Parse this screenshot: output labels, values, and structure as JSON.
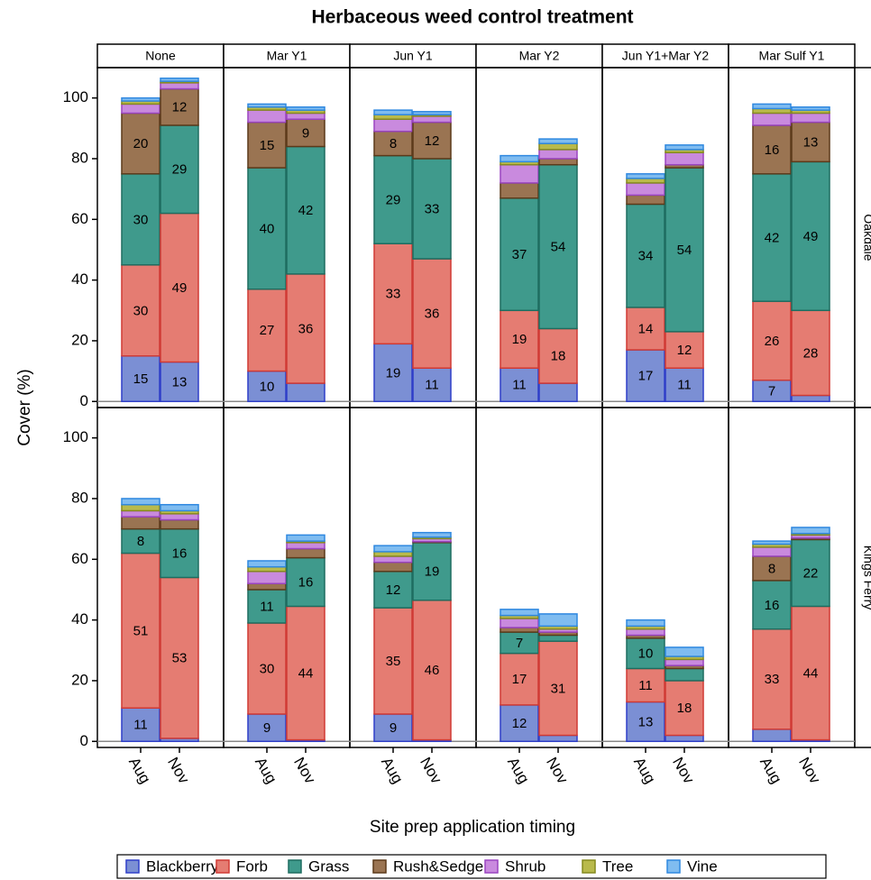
{
  "chart_data": {
    "type": "stacked-bar",
    "title": "Herbaceous weed control treatment",
    "x_label": "Site prep application timing",
    "y_label": "Cover (%)",
    "ylim": [
      -2,
      110
    ],
    "yticks": [
      0,
      20,
      40,
      60,
      80,
      100
    ],
    "columns": [
      "None",
      "Mar Y1",
      "Jun Y1",
      "Mar Y2",
      "Jun Y1+Mar Y2",
      "Mar Sulf Y1"
    ],
    "rows": [
      "Oakdale",
      "Kings Ferry"
    ],
    "categories": [
      "Aug",
      "Nov"
    ],
    "series": [
      {
        "name": "Blackberry",
        "color": "#7b8fd4",
        "edge_color": "#2f3fc8"
      },
      {
        "name": "Forb",
        "color": "#e57c72",
        "edge_color": "#d03a34"
      },
      {
        "name": "Grass",
        "color": "#3f9a8c",
        "edge_color": "#1e6d60"
      },
      {
        "name": "Rush&Sedge",
        "color": "#9a7452",
        "edge_color": "#5c3a1a"
      },
      {
        "name": "Shrub",
        "color": "#c98ade",
        "edge_color": "#9a44c0"
      },
      {
        "name": "Tree",
        "color": "#b9ba4c",
        "edge_color": "#858a1e"
      },
      {
        "name": "Vine",
        "color": "#7fbcf0",
        "edge_color": "#2f88e0"
      }
    ],
    "panels": [
      [
        {
          "values": [
            [
              15,
              13
            ],
            [
              30,
              49
            ],
            [
              30,
              29
            ],
            [
              20,
              12
            ],
            [
              3,
              2
            ],
            [
              1,
              0.5
            ],
            [
              1,
              1
            ]
          ],
          "value_labels": [
            [
              "15",
              "13"
            ],
            [
              "30",
              "49"
            ],
            [
              "30",
              "29"
            ],
            [
              "20",
              "12"
            ],
            [
              null,
              null
            ],
            [
              null,
              null
            ],
            [
              null,
              null
            ]
          ]
        },
        {
          "values": [
            [
              10,
              6
            ],
            [
              27,
              36
            ],
            [
              40,
              42
            ],
            [
              15,
              9
            ],
            [
              4,
              2
            ],
            [
              1,
              1
            ],
            [
              1,
              1
            ]
          ],
          "value_labels": [
            [
              "10",
              null
            ],
            [
              "27",
              "36"
            ],
            [
              "40",
              "42"
            ],
            [
              "15",
              "9"
            ],
            [
              null,
              null
            ],
            [
              null,
              null
            ],
            [
              null,
              null
            ]
          ]
        },
        {
          "values": [
            [
              19,
              11
            ],
            [
              33,
              36
            ],
            [
              29,
              33
            ],
            [
              8,
              12
            ],
            [
              4,
              2
            ],
            [
              1.5,
              0.5
            ],
            [
              1.5,
              1
            ]
          ],
          "value_labels": [
            [
              "19",
              "11"
            ],
            [
              "33",
              "36"
            ],
            [
              "29",
              "33"
            ],
            [
              "8",
              "12"
            ],
            [
              null,
              null
            ],
            [
              null,
              null
            ],
            [
              null,
              null
            ]
          ]
        },
        {
          "values": [
            [
              11,
              6
            ],
            [
              19,
              18
            ],
            [
              37,
              54
            ],
            [
              5,
              2
            ],
            [
              6,
              3
            ],
            [
              1,
              2
            ],
            [
              2,
              1.5
            ]
          ],
          "value_labels": [
            [
              "11",
              null
            ],
            [
              "19",
              "18"
            ],
            [
              "37",
              "54"
            ],
            [
              null,
              null
            ],
            [
              null,
              null
            ],
            [
              null,
              null
            ],
            [
              null,
              null
            ]
          ]
        },
        {
          "values": [
            [
              17,
              11
            ],
            [
              14,
              12
            ],
            [
              34,
              54
            ],
            [
              3,
              1
            ],
            [
              4,
              4
            ],
            [
              1.5,
              1
            ],
            [
              1.5,
              1.5
            ]
          ],
          "value_labels": [
            [
              "17",
              "11"
            ],
            [
              "14",
              "12"
            ],
            [
              "34",
              "54"
            ],
            [
              null,
              null
            ],
            [
              null,
              null
            ],
            [
              null,
              null
            ],
            [
              null,
              null
            ]
          ]
        },
        {
          "values": [
            [
              7,
              2
            ],
            [
              26,
              28
            ],
            [
              42,
              49
            ],
            [
              16,
              13
            ],
            [
              4,
              3
            ],
            [
              1.5,
              1
            ],
            [
              1.5,
              1
            ]
          ],
          "value_labels": [
            [
              "7",
              null
            ],
            [
              "26",
              "28"
            ],
            [
              "42",
              "49"
            ],
            [
              "16",
              "13"
            ],
            [
              null,
              null
            ],
            [
              null,
              null
            ],
            [
              null,
              null
            ]
          ]
        }
      ],
      [
        {
          "values": [
            [
              11,
              1
            ],
            [
              51,
              53
            ],
            [
              8,
              16
            ],
            [
              4,
              3
            ],
            [
              2,
              2
            ],
            [
              2,
              1
            ],
            [
              2,
              2
            ]
          ],
          "value_labels": [
            [
              "11",
              null
            ],
            [
              "51",
              "53"
            ],
            [
              "8",
              "16"
            ],
            [
              null,
              null
            ],
            [
              null,
              null
            ],
            [
              null,
              null
            ],
            [
              null,
              null
            ]
          ]
        },
        {
          "values": [
            [
              9,
              0.5
            ],
            [
              30,
              44
            ],
            [
              11,
              16
            ],
            [
              2,
              3
            ],
            [
              4,
              2
            ],
            [
              1.5,
              0.5
            ],
            [
              2,
              2
            ]
          ],
          "value_labels": [
            [
              "9",
              null
            ],
            [
              "30",
              "44"
            ],
            [
              "11",
              "16"
            ],
            [
              null,
              null
            ],
            [
              null,
              null
            ],
            [
              null,
              null
            ],
            [
              null,
              null
            ]
          ]
        },
        {
          "values": [
            [
              9,
              0.5
            ],
            [
              35,
              46
            ],
            [
              12,
              19
            ],
            [
              3,
              0.3
            ],
            [
              2,
              1
            ],
            [
              1.5,
              0.5
            ],
            [
              2,
              1.5
            ]
          ],
          "value_labels": [
            [
              "9",
              null
            ],
            [
              "35",
              "46"
            ],
            [
              "12",
              "19"
            ],
            [
              null,
              null
            ],
            [
              null,
              null
            ],
            [
              null,
              null
            ],
            [
              null,
              null
            ]
          ]
        },
        {
          "values": [
            [
              12,
              2
            ],
            [
              17,
              31
            ],
            [
              7,
              2
            ],
            [
              1.5,
              1
            ],
            [
              3,
              1
            ],
            [
              1,
              1
            ],
            [
              2,
              4
            ]
          ],
          "value_labels": [
            [
              "12",
              null
            ],
            [
              "17",
              "31"
            ],
            [
              "7",
              null
            ],
            [
              null,
              null
            ],
            [
              null,
              null
            ],
            [
              null,
              null
            ],
            [
              null,
              null
            ]
          ]
        },
        {
          "values": [
            [
              13,
              2
            ],
            [
              11,
              18
            ],
            [
              10,
              4
            ],
            [
              1,
              1
            ],
            [
              2,
              2
            ],
            [
              1,
              1
            ],
            [
              2,
              3
            ]
          ],
          "value_labels": [
            [
              "13",
              null
            ],
            [
              "11",
              "18"
            ],
            [
              "10",
              null
            ],
            [
              null,
              null
            ],
            [
              null,
              null
            ],
            [
              null,
              null
            ],
            [
              null,
              null
            ]
          ]
        },
        {
          "values": [
            [
              4,
              0.5
            ],
            [
              33,
              44
            ],
            [
              16,
              22
            ],
            [
              8,
              0.5
            ],
            [
              3,
              1
            ],
            [
              1,
              0.5
            ],
            [
              1,
              2
            ]
          ],
          "value_labels": [
            [
              null,
              null
            ],
            [
              "33",
              "44"
            ],
            [
              "16",
              "22"
            ],
            [
              "8",
              null
            ],
            [
              null,
              null
            ],
            [
              null,
              null
            ],
            [
              null,
              null
            ]
          ]
        }
      ]
    ]
  }
}
